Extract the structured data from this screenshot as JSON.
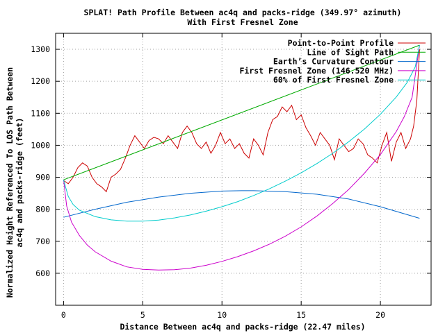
{
  "chart_data": {
    "type": "line",
    "title": "SPLAT! Path Profile Between ac4q and packs-ridge (349.97° azimuth)",
    "subtitle": "With First Fresnel Zone",
    "xlabel": "Distance Between ac4q and packs-ridge (22.47 miles)",
    "ylabel_line1": "Normalized Height Referenced To LOS Path Between",
    "ylabel_line2": "ac4q and packs-ridge (feet)",
    "xlim": [
      -0.5,
      23.2
    ],
    "ylim": [
      500,
      1350
    ],
    "x_ticks": [
      0,
      5,
      10,
      15,
      20
    ],
    "y_ticks": [
      600,
      700,
      800,
      900,
      1000,
      1100,
      1200,
      1300
    ],
    "grid": true,
    "legend_position": "top-right",
    "series": [
      {
        "name": "Point-to-Point Profile",
        "color": "#cc0000",
        "x": [
          0,
          0.3,
          0.6,
          0.9,
          1.2,
          1.5,
          1.8,
          2.1,
          2.4,
          2.7,
          3.0,
          3.3,
          3.6,
          3.9,
          4.2,
          4.5,
          4.8,
          5.1,
          5.4,
          5.7,
          6.0,
          6.3,
          6.6,
          6.9,
          7.2,
          7.5,
          7.8,
          8.1,
          8.4,
          8.7,
          9.0,
          9.3,
          9.6,
          9.9,
          10.2,
          10.5,
          10.8,
          11.1,
          11.4,
          11.7,
          12.0,
          12.3,
          12.6,
          12.9,
          13.2,
          13.5,
          13.8,
          14.1,
          14.4,
          14.7,
          15.0,
          15.3,
          15.6,
          15.9,
          16.2,
          16.5,
          16.8,
          17.1,
          17.4,
          17.7,
          18.0,
          18.3,
          18.6,
          18.9,
          19.2,
          19.5,
          19.8,
          20.1,
          20.4,
          20.7,
          21.0,
          21.3,
          21.6,
          21.9,
          22.1,
          22.3,
          22.47
        ],
        "y": [
          890,
          880,
          900,
          930,
          945,
          935,
          900,
          880,
          870,
          855,
          900,
          910,
          925,
          960,
          1000,
          1030,
          1010,
          990,
          1015,
          1025,
          1020,
          1005,
          1030,
          1010,
          990,
          1040,
          1060,
          1040,
          1005,
          990,
          1010,
          975,
          1000,
          1040,
          1005,
          1020,
          990,
          1005,
          975,
          960,
          1020,
          1000,
          970,
          1040,
          1080,
          1090,
          1120,
          1105,
          1125,
          1080,
          1095,
          1055,
          1030,
          1000,
          1040,
          1020,
          1000,
          955,
          1020,
          1000,
          980,
          990,
          1020,
          1005,
          970,
          960,
          945,
          1000,
          1040,
          950,
          1010,
          1040,
          990,
          1020,
          1060,
          1140,
          1300
        ]
      },
      {
        "name": "Line of Sight Path",
        "color": "#00aa00",
        "x": [
          0,
          22.47
        ],
        "y": [
          892,
          1313
        ]
      },
      {
        "name": "Earth’s Curvature Contour",
        "color": "#0066cc",
        "x": [
          0,
          2,
          4,
          6,
          8,
          10,
          11.23,
          12,
          14,
          16,
          18,
          20,
          22.47
        ],
        "y": [
          775,
          800,
          822,
          838,
          850,
          857,
          858,
          858,
          855,
          847,
          832,
          808,
          772
        ]
      },
      {
        "name": "First Fresnel Zone (146.520 MHz)",
        "color": "#cc00cc",
        "x": [
          0,
          0.2,
          0.5,
          1,
          1.5,
          2,
          3,
          4,
          5,
          6,
          7,
          8,
          9,
          10,
          11,
          12,
          13,
          14,
          15,
          16,
          17,
          18,
          19,
          20,
          21,
          21.5,
          22,
          22.47
        ],
        "y": [
          892,
          810,
          760,
          718,
          688,
          667,
          638,
          620,
          612,
          610,
          611,
          616,
          625,
          637,
          652,
          670,
          691,
          716,
          745,
          779,
          818,
          862,
          913,
          971,
          1043,
          1089,
          1150,
          1313
        ]
      },
      {
        "name": "60% of First Fresnel Zone",
        "color": "#00cccc",
        "x": [
          0,
          0.3,
          0.6,
          1,
          2,
          3,
          4,
          5,
          6,
          7,
          8,
          9,
          10,
          11,
          12,
          13,
          14,
          15,
          16,
          17,
          18,
          19,
          20,
          21,
          21.7,
          22.2,
          22.47
        ],
        "y": [
          892,
          840,
          815,
          797,
          777,
          767,
          763,
          763,
          766,
          773,
          782,
          794,
          808,
          824,
          843,
          864,
          888,
          914,
          943,
          975,
          1011,
          1051,
          1097,
          1151,
          1197,
          1245,
          1313
        ]
      }
    ]
  }
}
